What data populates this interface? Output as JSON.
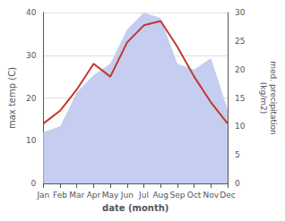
{
  "chart_data": {
    "type": "line",
    "xlabel": "date (month)",
    "ylabel": "max temp (C)",
    "y2label": "med. precipitation\n(kg/m2)",
    "categories": [
      "Jan",
      "Feb",
      "Mar",
      "Apr",
      "May",
      "Jun",
      "Jul",
      "Aug",
      "Sep",
      "Oct",
      "Nov",
      "Dec"
    ],
    "series": [
      {
        "type": "area",
        "axis": "y2",
        "color": "#c5cdf0",
        "values": [
          9,
          10,
          16,
          19,
          21,
          27,
          30,
          29,
          21,
          20,
          22,
          13
        ]
      },
      {
        "type": "line",
        "color": "#c0392b",
        "values": [
          14,
          17,
          22,
          28,
          25,
          33,
          37,
          38,
          32,
          25,
          19,
          14
        ]
      }
    ],
    "ylim": [
      0,
      40
    ],
    "yticks": [
      0,
      10,
      20,
      30,
      40
    ],
    "y2lim": [
      0,
      30
    ],
    "y2ticks": [
      0,
      5,
      10,
      15,
      20,
      25,
      30
    ],
    "grid": true
  }
}
